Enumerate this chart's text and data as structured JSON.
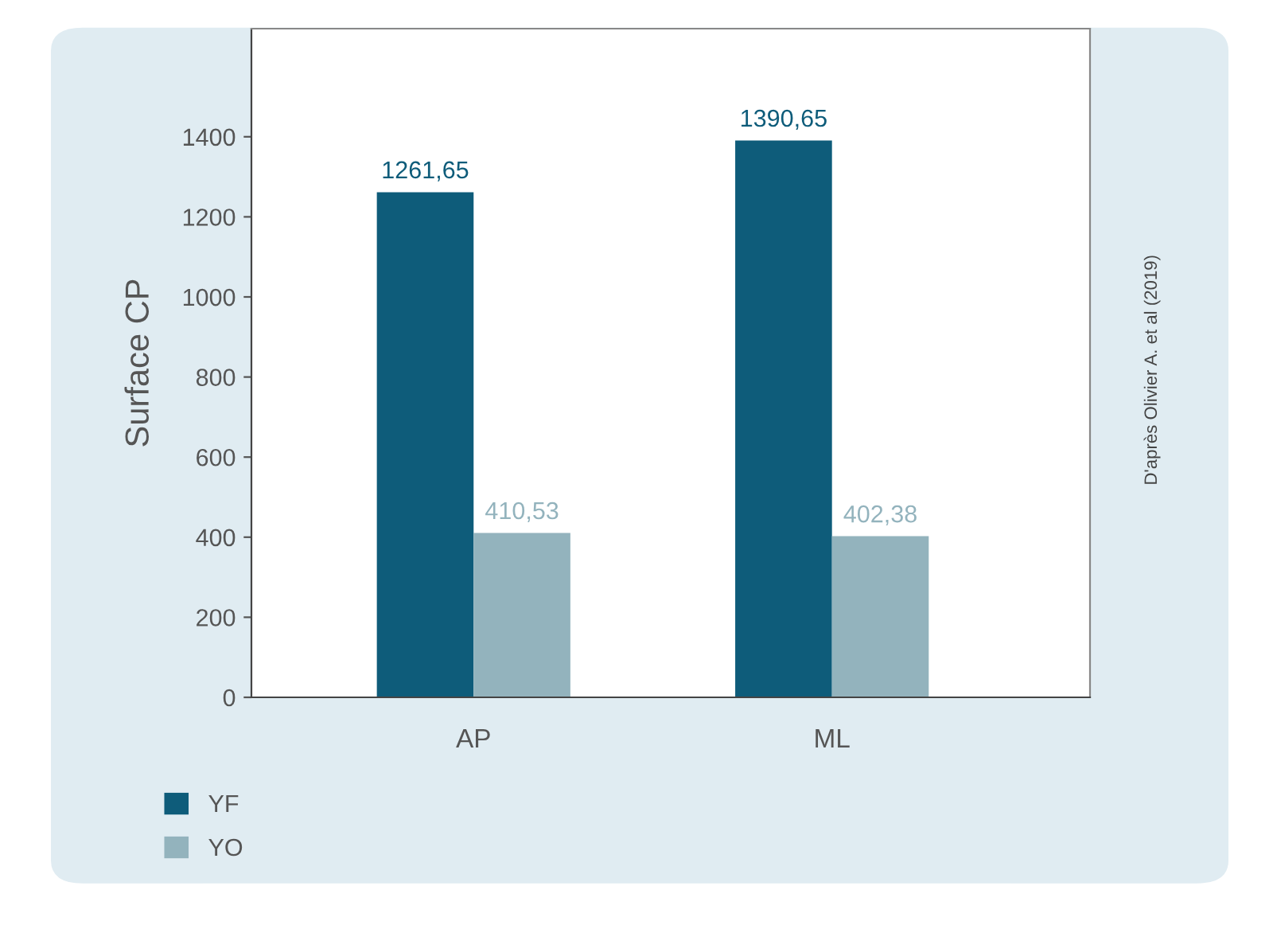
{
  "chart_data": {
    "type": "bar",
    "ylabel": "Surface CP",
    "categories": [
      "AP",
      "ML"
    ],
    "series": [
      {
        "name": "YF",
        "color": "#0e5c7a",
        "values": [
          1261.65,
          1390.65
        ],
        "value_labels": [
          "1261,65",
          "1390,65"
        ]
      },
      {
        "name": "YO",
        "color": "#93b3bd",
        "values": [
          410.53,
          402.38
        ],
        "value_labels": [
          "410,53",
          "402,38"
        ]
      }
    ],
    "ylim": [
      0,
      1670
    ],
    "yticks": [
      0,
      200,
      400,
      600,
      800,
      1000,
      1200,
      1400
    ],
    "grid": false,
    "legend": "bottom left",
    "annotations": [
      "D'après Olivier A. et al (2019)"
    ]
  }
}
